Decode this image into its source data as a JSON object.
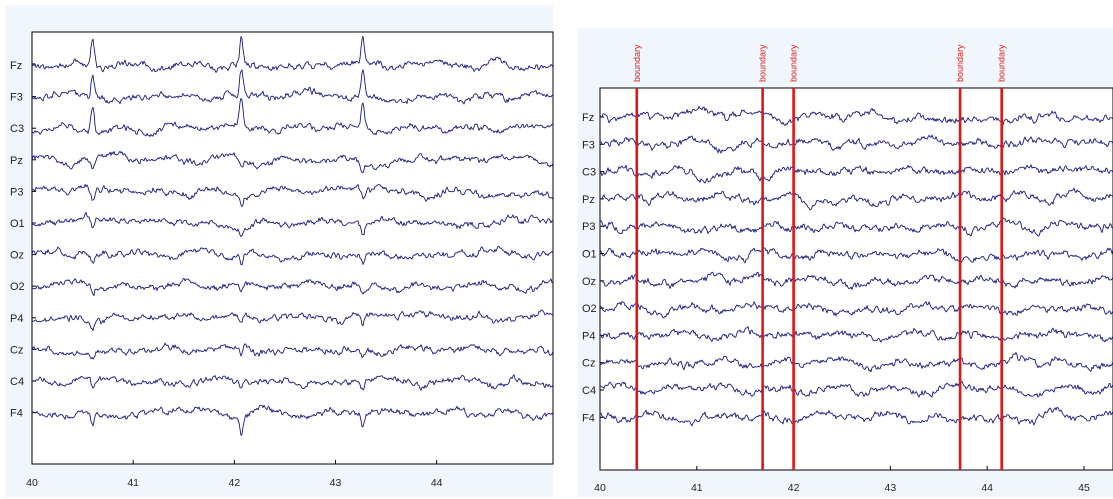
{
  "trace_color": "#1a1a7e",
  "boundary_color": "#e01616",
  "chart_data": [
    {
      "type": "line",
      "title": "",
      "xlabel": "",
      "ylabel": "",
      "channels": [
        "Fz",
        "F3",
        "C3",
        "Pz",
        "P3",
        "O1",
        "Oz",
        "O2",
        "P4",
        "Cz",
        "C4",
        "F4"
      ],
      "x_ticks": [
        "40",
        "41",
        "42",
        "43",
        "44"
      ],
      "xlim": [
        40,
        45.15
      ],
      "blink_artifacts_at": [
        40.6,
        42.07,
        43.27
      ],
      "boundaries": []
    },
    {
      "type": "line",
      "title": "",
      "xlabel": "",
      "ylabel": "",
      "channels": [
        "Fz",
        "F3",
        "C3",
        "Pz",
        "P3",
        "O1",
        "Oz",
        "O2",
        "P4",
        "Cz",
        "C4",
        "F4"
      ],
      "x_ticks": [
        "40",
        "41",
        "42",
        "43",
        "44",
        "45"
      ],
      "xlim": [
        40,
        45.3
      ],
      "blink_artifacts_at": [],
      "boundaries": [
        {
          "x": 40.38,
          "label": "boundary"
        },
        {
          "x": 41.68,
          "label": "boundary"
        },
        {
          "x": 42.0,
          "label": "boundary"
        },
        {
          "x": 43.72,
          "label": "boundary"
        },
        {
          "x": 44.15,
          "label": "boundary"
        }
      ]
    }
  ]
}
